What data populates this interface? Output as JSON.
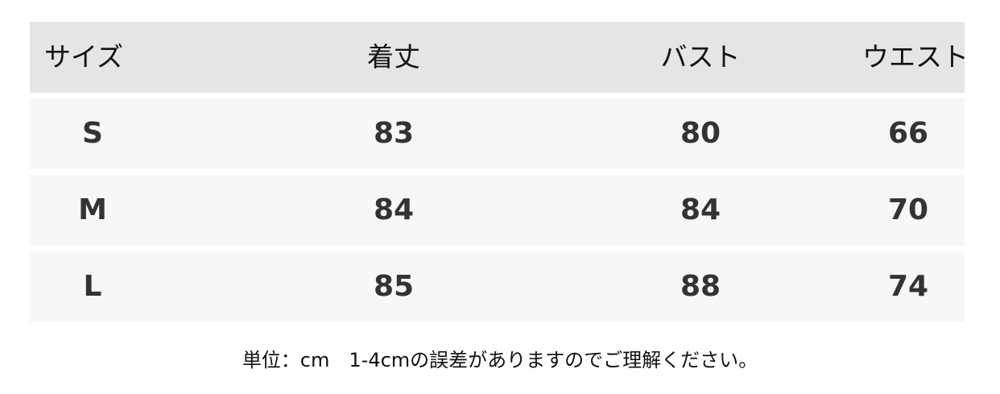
{
  "table": {
    "headers": [
      "サイズ",
      "着丈",
      "バスト",
      "ウエスト"
    ],
    "rows": [
      [
        "S",
        "83",
        "80",
        "66"
      ],
      [
        "M",
        "84",
        "84",
        "70"
      ],
      [
        "L",
        "85",
        "88",
        "74"
      ]
    ]
  },
  "note": "単位：cm　1-4cmの誤差がありますのでご理解ください。",
  "colors": {
    "header_bg": "#e5e5e5",
    "row_bg": "#f7f7f7",
    "text": "#333333"
  }
}
